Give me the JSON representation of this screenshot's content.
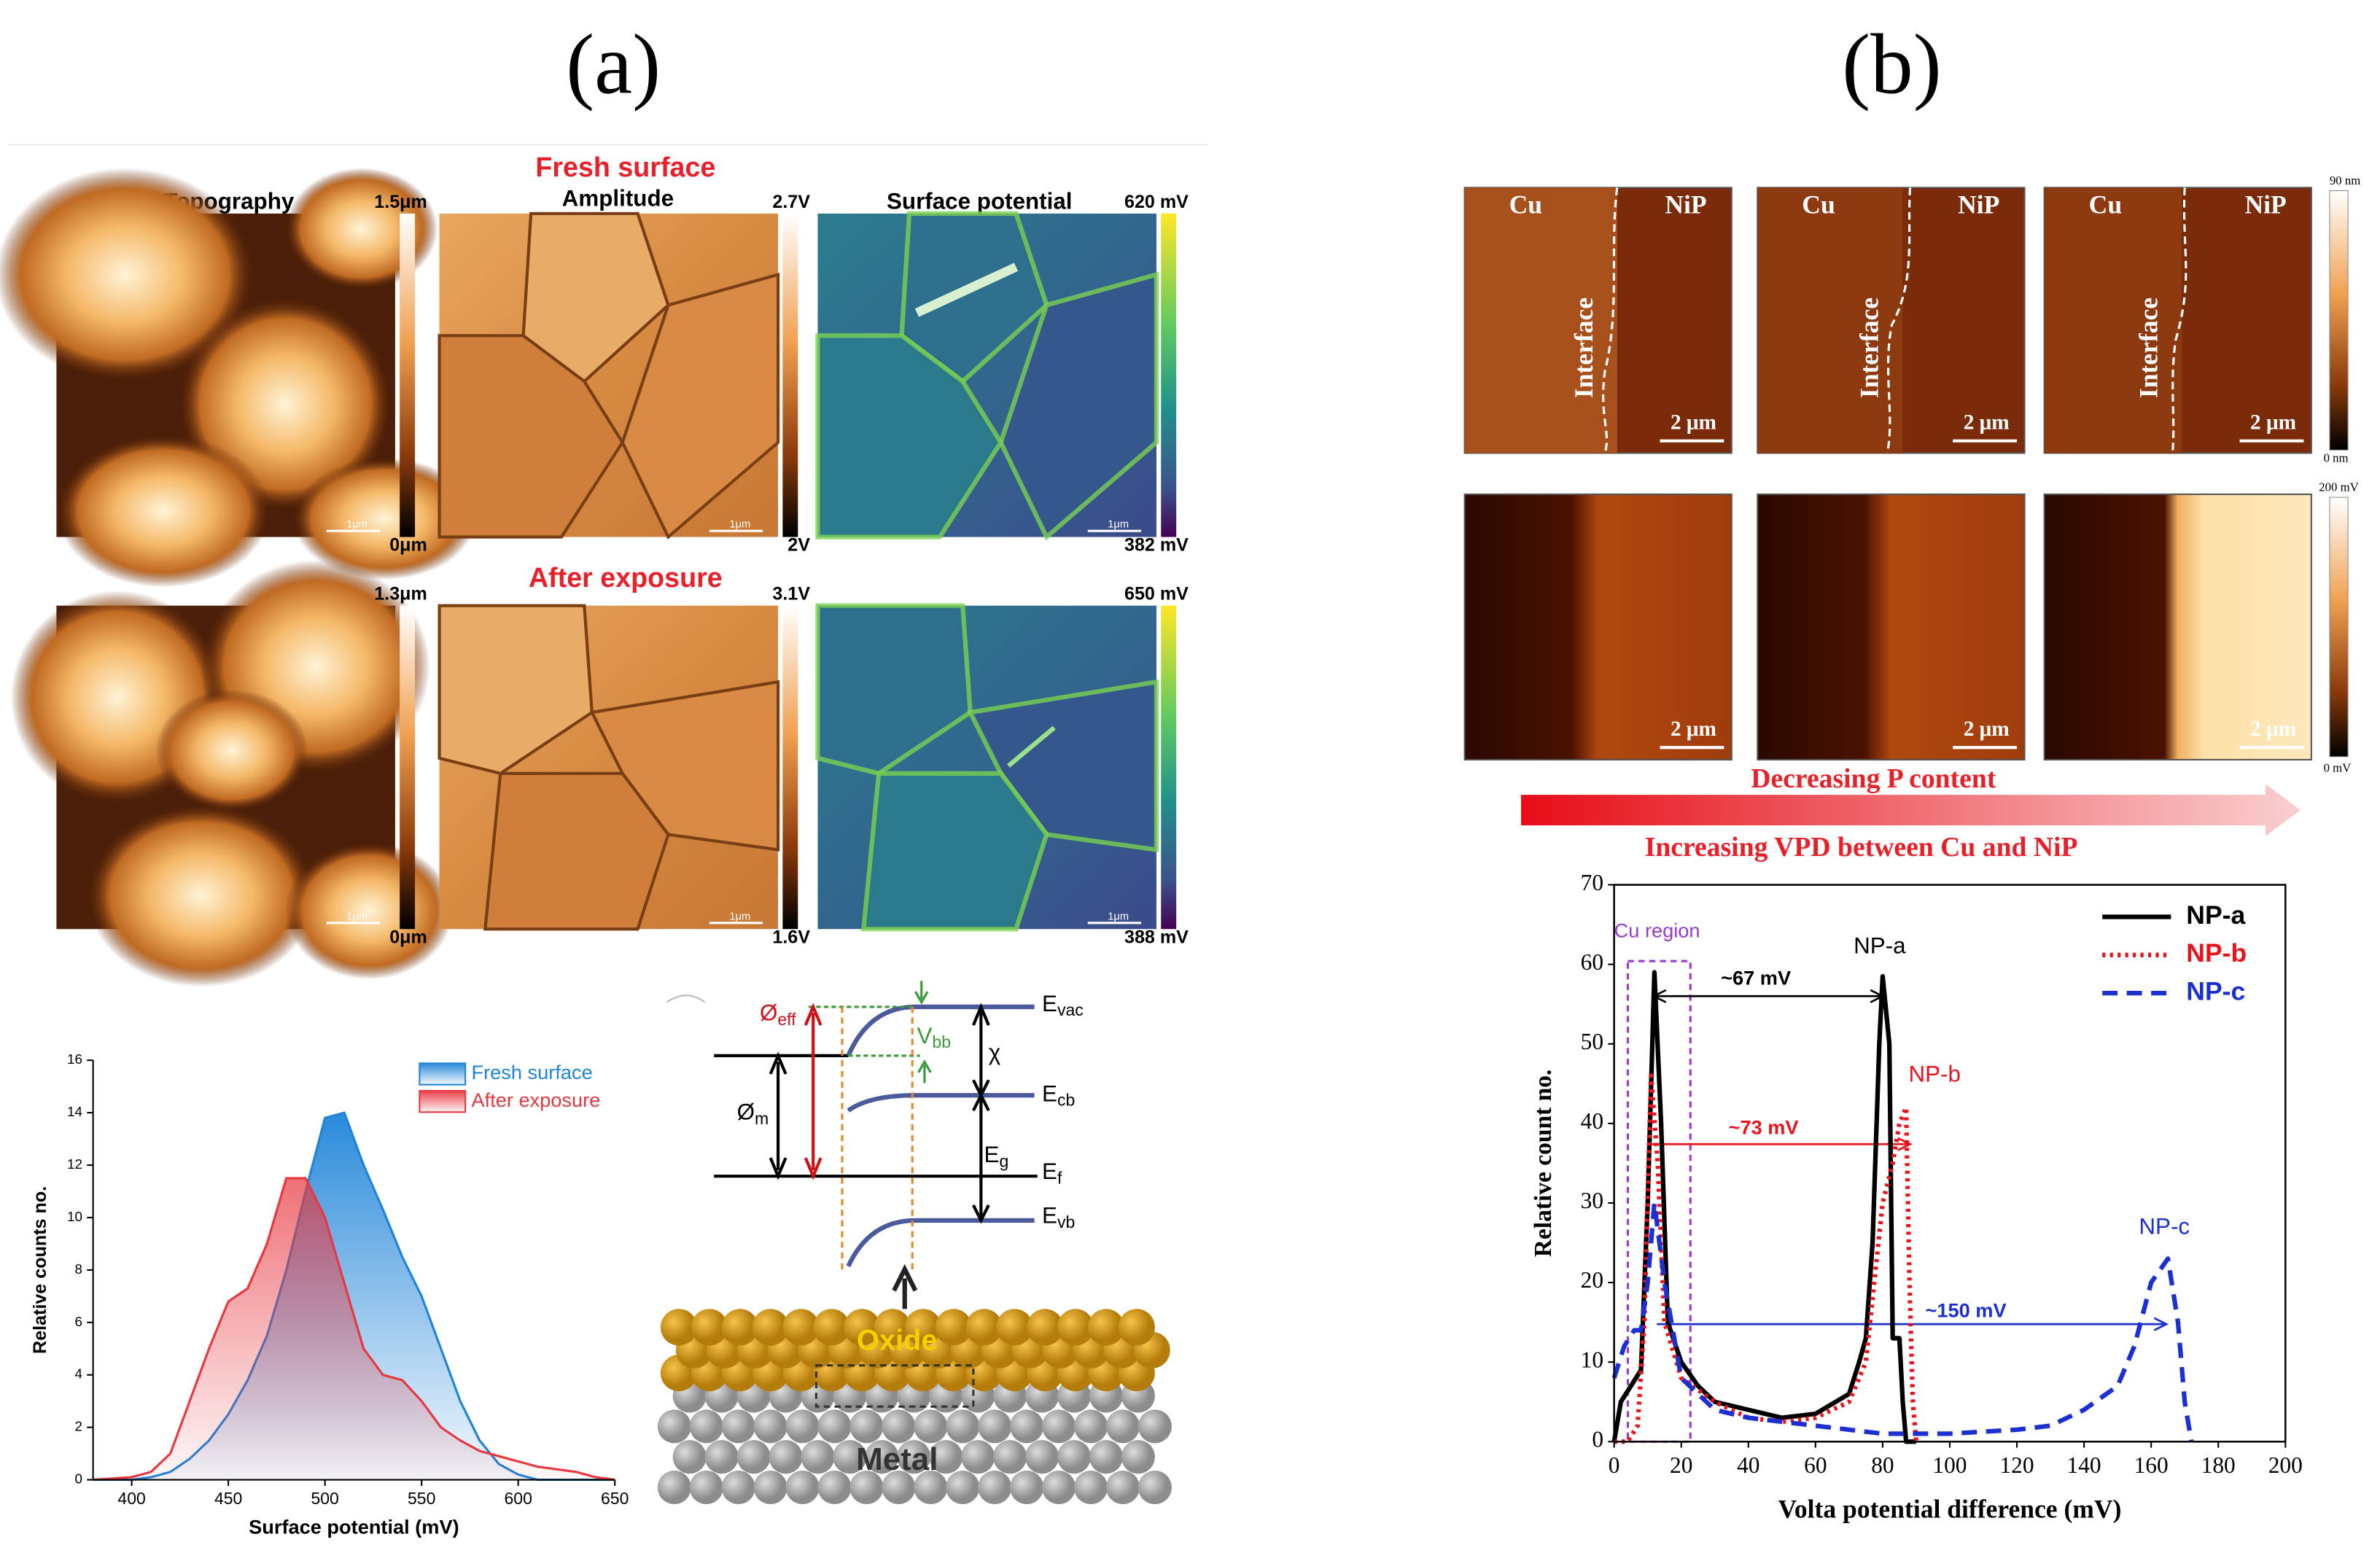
{
  "figure": {
    "a": {
      "label": "(a)",
      "row_titles": [
        "Fresh surface",
        "After exposure"
      ],
      "column_titles": [
        "Topography",
        "Amplitude",
        "Surface potential"
      ],
      "colorbars": [
        [
          "1.5μm",
          "0μm"
        ],
        [
          "2.7V",
          "2V"
        ],
        [
          "620 mV",
          "382 mV"
        ],
        [
          "1.3μm",
          "0μm"
        ],
        [
          "3.1V",
          "1.6V"
        ],
        [
          "650 mV",
          "388 mV"
        ]
      ],
      "scale_bar": "1μm",
      "diagram": {
        "phi_eff": {
          "main": "Ø",
          "sub": "eff"
        },
        "v_bb": {
          "main": "V",
          "sub": "bb"
        },
        "e_vac": {
          "main": "E",
          "sub": "vac"
        },
        "chi": "χ",
        "phi_m": {
          "main": "Ø",
          "sub": "m"
        },
        "e_cb": {
          "main": "E",
          "sub": "cb"
        },
        "e_g": {
          "main": "E",
          "sub": "g"
        },
        "e_f": {
          "main": "E",
          "sub": "f"
        },
        "e_vb": {
          "main": "E",
          "sub": "vb"
        },
        "oxide": "Oxide",
        "metal": "Metal"
      }
    },
    "b": {
      "label": "(b)",
      "map_labels": {
        "left": "Cu",
        "right": "NiP",
        "interface": "Interface"
      },
      "scale_bar": "2 μm",
      "colorbars": [
        [
          "90 nm",
          "0 nm"
        ],
        [
          "200 mV",
          "0 mV"
        ]
      ],
      "arrow_top": "Decreasing P content",
      "arrow_bottom": "Increasing VPD between Cu and NiP"
    }
  },
  "chart_data": [
    {
      "type": "area",
      "xlabel": "Surface potential (mV)",
      "ylabel": "Relative counts no.",
      "x": [
        380,
        390,
        400,
        410,
        420,
        430,
        440,
        450,
        460,
        470,
        480,
        490,
        500,
        510,
        520,
        530,
        540,
        550,
        560,
        570,
        580,
        590,
        600,
        610,
        620,
        630,
        640,
        650
      ],
      "series": [
        {
          "name": "Fresh surface",
          "color": "#1f84d8",
          "values": [
            0,
            0,
            0,
            0.1,
            0.3,
            0.8,
            1.5,
            2.5,
            3.8,
            5.5,
            8,
            11,
            13.8,
            14,
            12,
            10.3,
            8.5,
            7,
            5,
            3,
            1.5,
            0.6,
            0.2,
            0,
            0,
            0,
            0,
            0
          ]
        },
        {
          "name": "After exposure",
          "color": "#e8373f",
          "values": [
            0,
            0.05,
            0.1,
            0.3,
            1,
            3,
            5,
            6.8,
            7.3,
            9,
            11.5,
            11.5,
            10,
            7.5,
            5,
            4,
            3.8,
            3,
            2,
            1.5,
            1.1,
            0.9,
            0.7,
            0.5,
            0.4,
            0.3,
            0.1,
            0
          ]
        }
      ],
      "xlim": [
        380,
        650
      ],
      "xticks": [
        400,
        450,
        500,
        550,
        600,
        650
      ],
      "ylim": [
        0,
        16
      ],
      "yticks": [
        0,
        2,
        4,
        6,
        8,
        10,
        12,
        14,
        16
      ],
      "legend": "upper right"
    },
    {
      "type": "line",
      "xlabel": "Volta potential difference (mV)",
      "ylabel": "Relative count no.",
      "series": [
        {
          "name": "NP-a",
          "color": "#000000",
          "dash": "solid",
          "x": [
            0,
            2,
            5,
            8,
            10,
            12,
            14,
            16,
            20,
            25,
            30,
            40,
            50,
            60,
            70,
            73,
            75,
            77,
            79,
            80,
            82,
            83,
            85,
            86,
            87,
            90
          ],
          "values": [
            0,
            5,
            7,
            9,
            30,
            59,
            40,
            15,
            10,
            7,
            5,
            4,
            3,
            3.5,
            6,
            10,
            13,
            25,
            50,
            58.5,
            50,
            13,
            13,
            5,
            0,
            0
          ]
        },
        {
          "name": "NP-b",
          "color": "#e8141c",
          "dash": "dotted",
          "x": [
            0,
            4,
            7,
            9,
            11,
            13,
            15,
            20,
            30,
            40,
            50,
            60,
            70,
            75,
            80,
            83,
            85,
            87,
            88,
            89,
            90
          ],
          "values": [
            0,
            0,
            2,
            15,
            46,
            35,
            15,
            8,
            5,
            3,
            2.5,
            3,
            5,
            10,
            30,
            35,
            40,
            42,
            20,
            5,
            0
          ]
        },
        {
          "name": "NP-c",
          "color": "#1c2fd0",
          "dash": "dashed",
          "x": [
            0,
            3,
            6,
            8,
            10,
            12,
            15,
            20,
            30,
            40,
            60,
            80,
            100,
            120,
            130,
            140,
            150,
            155,
            160,
            165,
            168,
            170,
            172
          ],
          "values": [
            8,
            12,
            14,
            14,
            20,
            30,
            20,
            8,
            4,
            3,
            2,
            1,
            1,
            1.5,
            2,
            4,
            7,
            12,
            20,
            23,
            15,
            5,
            0
          ]
        }
      ],
      "annotations": [
        "Cu region",
        "NP-a",
        "NP-b",
        "NP-c",
        "~67 mV",
        "~73 mV",
        "~150 mV"
      ],
      "xlim": [
        0,
        200
      ],
      "xticks": [
        0,
        20,
        40,
        60,
        80,
        100,
        120,
        140,
        160,
        180,
        200
      ],
      "ylim": [
        0,
        70
      ],
      "yticks": [
        0,
        10,
        20,
        30,
        40,
        50,
        60,
        70
      ],
      "legend": "upper right"
    }
  ]
}
